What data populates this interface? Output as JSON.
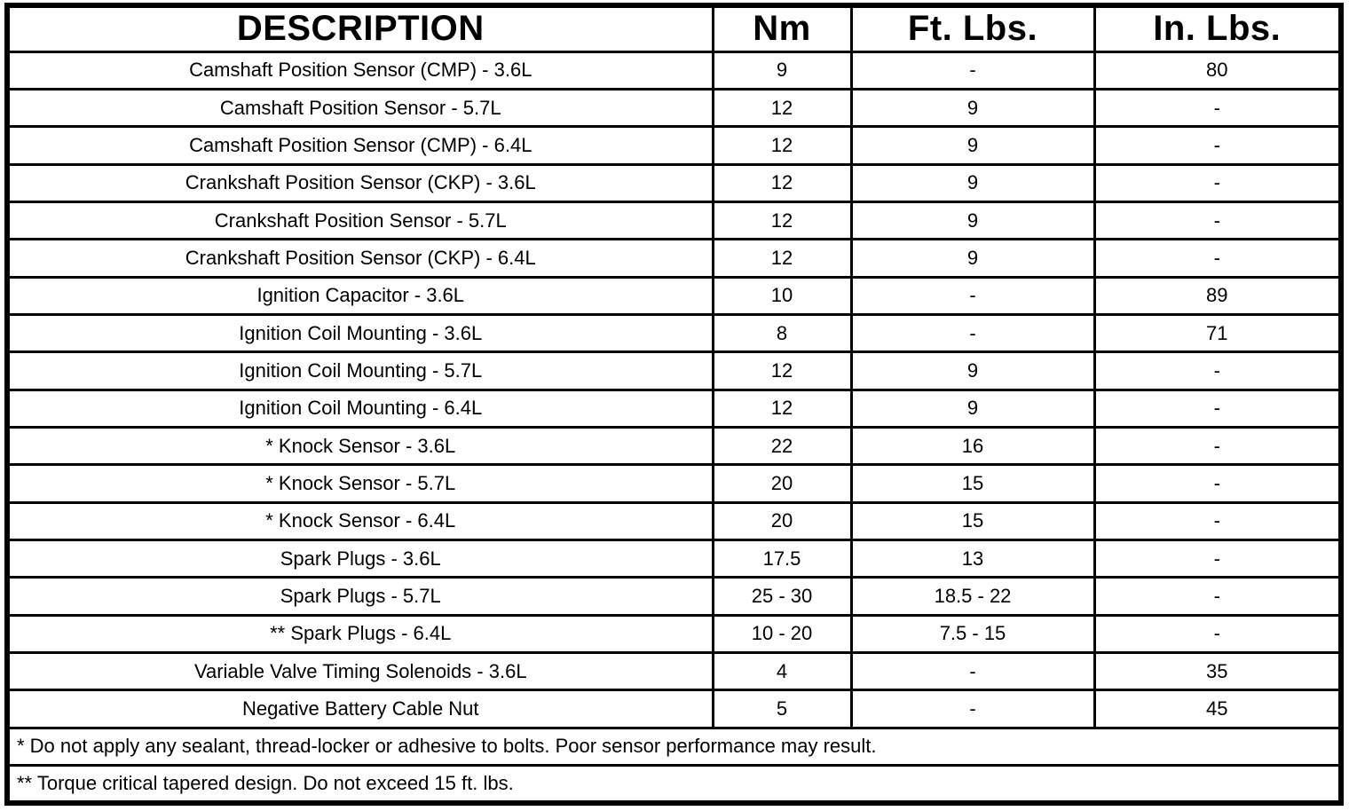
{
  "table": {
    "columns": [
      "DESCRIPTION",
      "Nm",
      "Ft. Lbs.",
      "In. Lbs."
    ],
    "rows": [
      {
        "description": "Camshaft Position Sensor (CMP) - 3.6L",
        "nm": "9",
        "ft_lbs": "-",
        "in_lbs": "80"
      },
      {
        "description": "Camshaft Position Sensor - 5.7L",
        "nm": "12",
        "ft_lbs": "9",
        "in_lbs": "-"
      },
      {
        "description": "Camshaft Position Sensor (CMP) - 6.4L",
        "nm": "12",
        "ft_lbs": "9",
        "in_lbs": "-"
      },
      {
        "description": "Crankshaft Position Sensor (CKP) - 3.6L",
        "nm": "12",
        "ft_lbs": "9",
        "in_lbs": "-"
      },
      {
        "description": "Crankshaft Position Sensor - 5.7L",
        "nm": "12",
        "ft_lbs": "9",
        "in_lbs": "-"
      },
      {
        "description": "Crankshaft Position Sensor (CKP) - 6.4L",
        "nm": "12",
        "ft_lbs": "9",
        "in_lbs": "-"
      },
      {
        "description": "Ignition Capacitor - 3.6L",
        "nm": "10",
        "ft_lbs": "-",
        "in_lbs": "89"
      },
      {
        "description": "Ignition Coil Mounting - 3.6L",
        "nm": "8",
        "ft_lbs": "-",
        "in_lbs": "71"
      },
      {
        "description": "Ignition Coil Mounting - 5.7L",
        "nm": "12",
        "ft_lbs": "9",
        "in_lbs": "-"
      },
      {
        "description": "Ignition Coil Mounting - 6.4L",
        "nm": "12",
        "ft_lbs": "9",
        "in_lbs": "-"
      },
      {
        "description": "* Knock Sensor - 3.6L",
        "nm": "22",
        "ft_lbs": "16",
        "in_lbs": "-"
      },
      {
        "description": "* Knock Sensor - 5.7L",
        "nm": "20",
        "ft_lbs": "15",
        "in_lbs": "-"
      },
      {
        "description": "* Knock Sensor - 6.4L",
        "nm": "20",
        "ft_lbs": "15",
        "in_lbs": "-"
      },
      {
        "description": "Spark Plugs - 3.6L",
        "nm": "17.5",
        "ft_lbs": "13",
        "in_lbs": "-"
      },
      {
        "description": "Spark Plugs - 5.7L",
        "nm": "25 - 30",
        "ft_lbs": "18.5 - 22",
        "in_lbs": "-"
      },
      {
        "description": "** Spark Plugs - 6.4L",
        "nm": "10 - 20",
        "ft_lbs": "7.5 - 15",
        "in_lbs": "-"
      },
      {
        "description": "Variable Valve Timing Solenoids - 3.6L",
        "nm": "4",
        "ft_lbs": "-",
        "in_lbs": "35"
      },
      {
        "description": "Negative Battery Cable Nut",
        "nm": "5",
        "ft_lbs": "-",
        "in_lbs": "45"
      }
    ],
    "footnotes": [
      "* Do not apply any sealant, thread-locker or adhesive to bolts. Poor sensor performance may result.",
      "** Torque critical tapered design. Do not exceed 15 ft. lbs."
    ]
  }
}
